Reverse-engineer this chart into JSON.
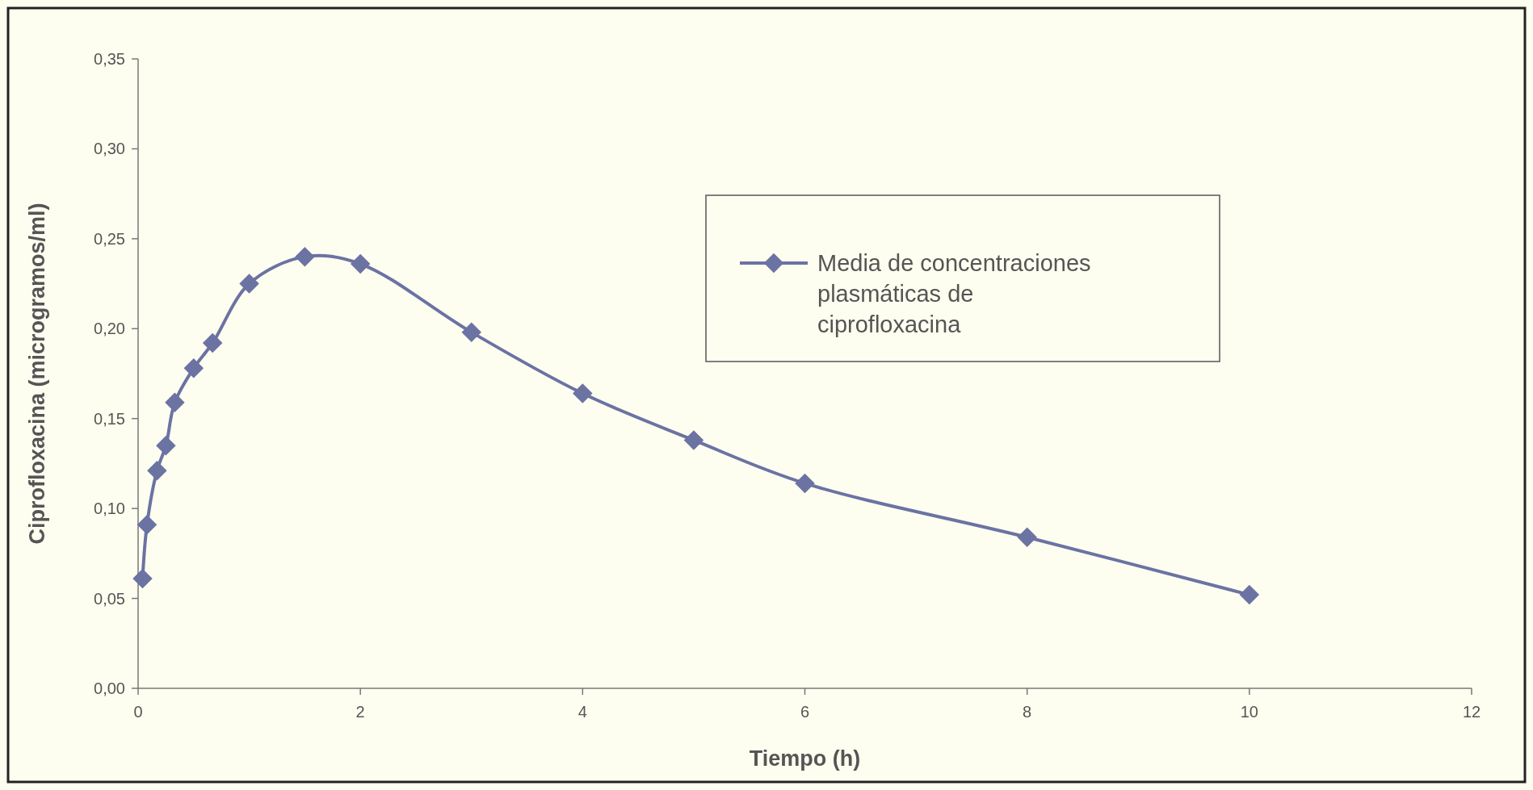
{
  "chart_data": {
    "type": "line",
    "xlabel": "Tiempo (h)",
    "ylabel": "Ciprofloxacina (microgramos/ml)",
    "xlim": [
      0,
      12
    ],
    "xticks": [
      0,
      2,
      4,
      6,
      8,
      10,
      12
    ],
    "ylim": [
      0,
      0.35
    ],
    "yticks": [
      {
        "value": 0,
        "label": "0,00"
      },
      {
        "value": 0.05,
        "label": "0,05"
      },
      {
        "value": 0.1,
        "label": "0,10"
      },
      {
        "value": 0.15,
        "label": "0,15"
      },
      {
        "value": 0.2,
        "label": "0,20"
      },
      {
        "value": 0.25,
        "label": "0,25"
      },
      {
        "value": 0.3,
        "label": "0,30"
      },
      {
        "value": 0.35,
        "label": "0,35"
      }
    ],
    "x": [
      0.04,
      0.08,
      0.17,
      0.25,
      0.33,
      0.5,
      0.67,
      1,
      1.5,
      2,
      3,
      4,
      5,
      6,
      8,
      10
    ],
    "series": [
      {
        "name": "Media de concentraciones plasmáticas de ciprofloxacina",
        "color": "#6b73a3",
        "values": [
          0.061,
          0.091,
          0.121,
          0.135,
          0.159,
          0.178,
          0.192,
          0.225,
          0.24,
          0.236,
          0.198,
          0.164,
          0.138,
          0.114,
          0.084,
          0.052
        ]
      }
    ],
    "marker": "diamond",
    "line_style": "solid",
    "grid": false,
    "legend": "top right"
  }
}
